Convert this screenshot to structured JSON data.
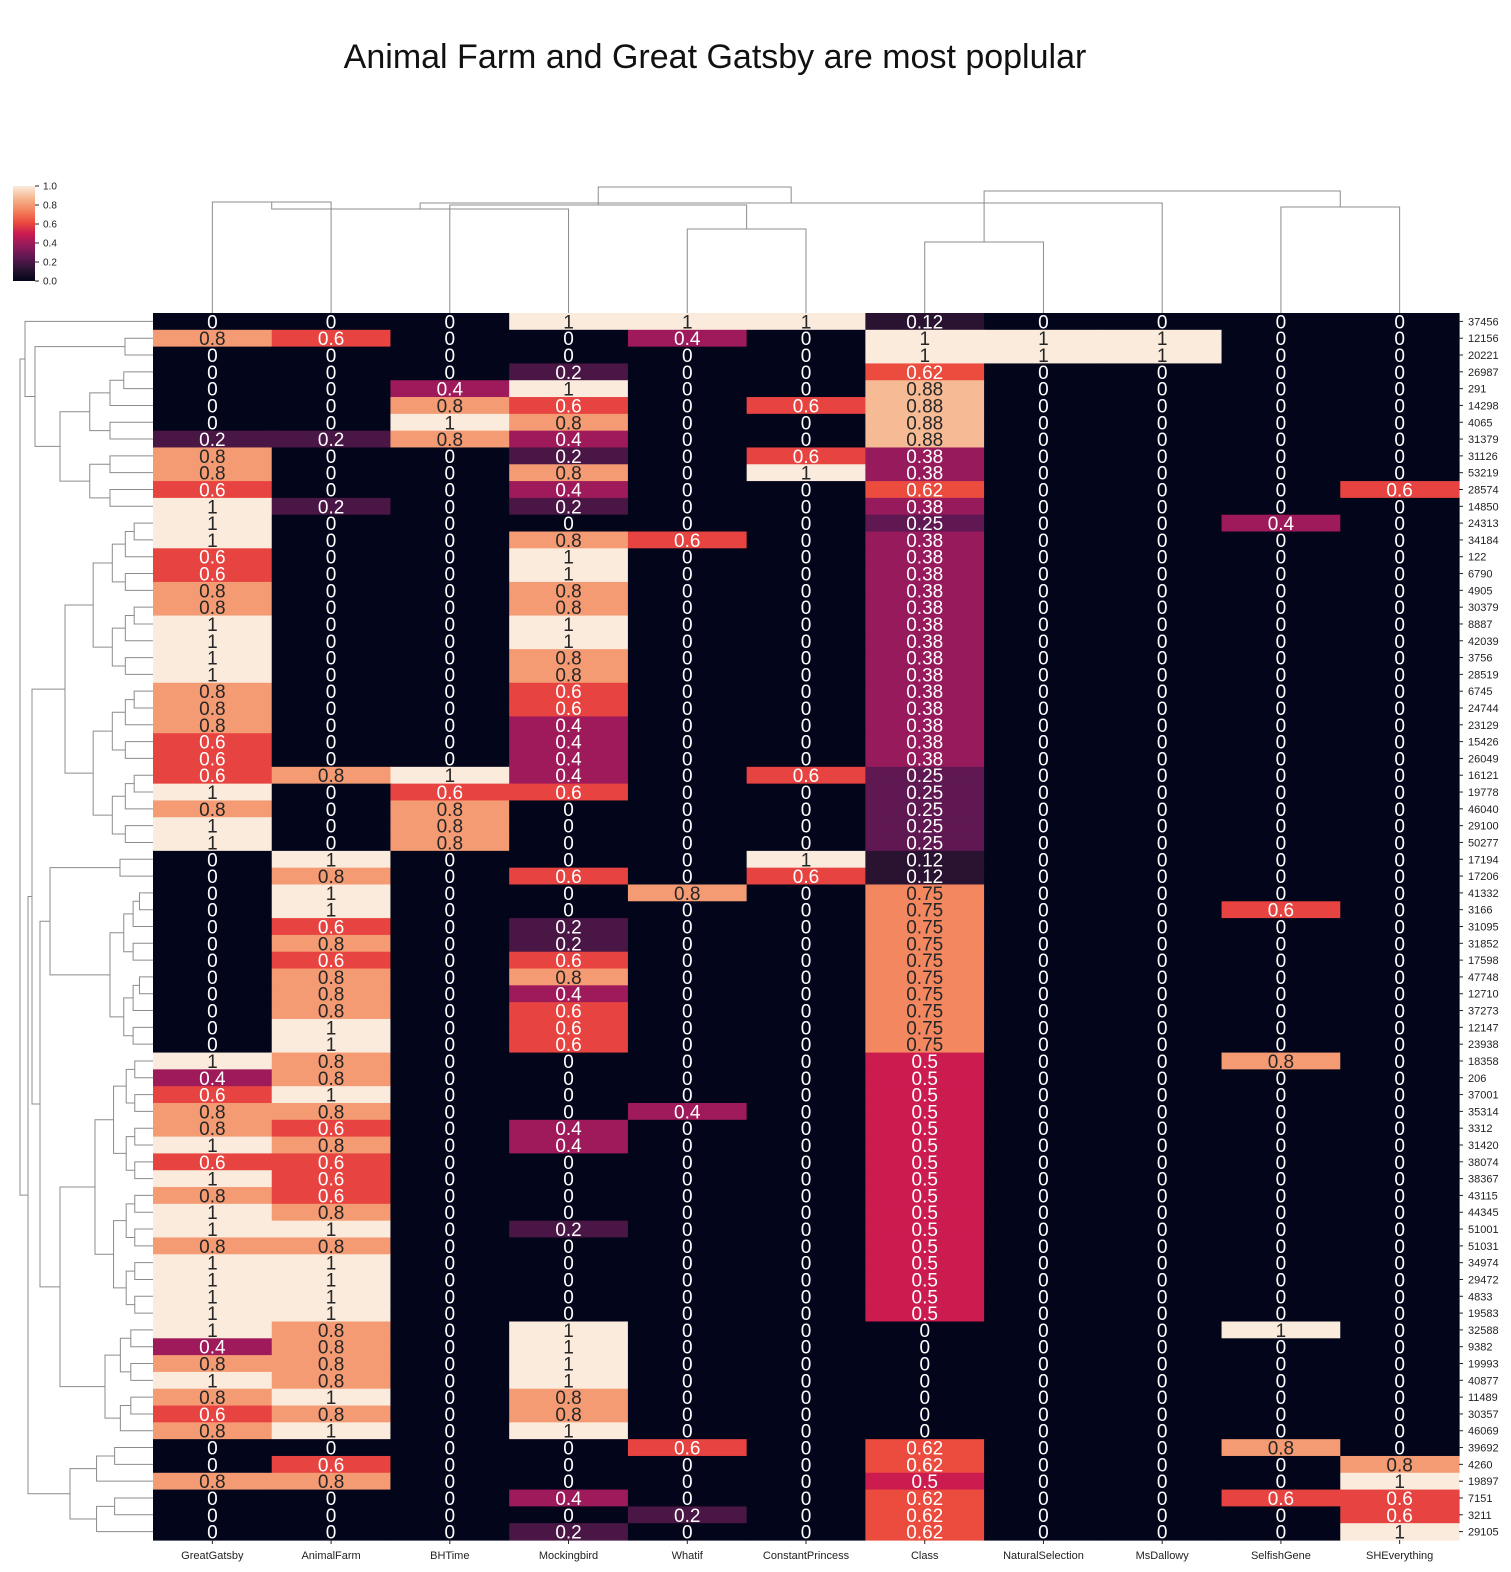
{
  "chart_data": {
    "type": "heatmap",
    "title": "Animal Farm and Great Gatsby are most poplular",
    "columns": [
      "GreatGatsby",
      "AnimalFarm",
      "BHTime",
      "Mockingbird",
      "Whatif",
      "ConstantPrincess",
      "Class",
      "NaturalSelection",
      "MsDallowy",
      "SelfishGene",
      "SHEverything"
    ],
    "rows": [
      {
        "id": "37456",
        "values": [
          0,
          0,
          0,
          1,
          1,
          1,
          0.12,
          0,
          0,
          0,
          0
        ]
      },
      {
        "id": "12156",
        "values": [
          0.8,
          0.6,
          0,
          0,
          0.4,
          0,
          1,
          1,
          1,
          0,
          0
        ]
      },
      {
        "id": "20221",
        "values": [
          0,
          0,
          0,
          0,
          0,
          0,
          1,
          1,
          1,
          0,
          0
        ]
      },
      {
        "id": "26987",
        "values": [
          0,
          0,
          0,
          0.2,
          0,
          0,
          0.62,
          0,
          0,
          0,
          0
        ]
      },
      {
        "id": "291",
        "values": [
          0,
          0,
          0.4,
          1,
          0,
          0,
          0.88,
          0,
          0,
          0,
          0
        ]
      },
      {
        "id": "14298",
        "values": [
          0,
          0,
          0.8,
          0.6,
          0,
          0.6,
          0.88,
          0,
          0,
          0,
          0
        ]
      },
      {
        "id": "4065",
        "values": [
          0,
          0,
          1,
          0.8,
          0,
          0,
          0.88,
          0,
          0,
          0,
          0
        ]
      },
      {
        "id": "31379",
        "values": [
          0.2,
          0.2,
          0.8,
          0.4,
          0,
          0,
          0.88,
          0,
          0,
          0,
          0
        ]
      },
      {
        "id": "31126",
        "values": [
          0.8,
          0,
          0,
          0.2,
          0,
          0.6,
          0.38,
          0,
          0,
          0,
          0
        ]
      },
      {
        "id": "53219",
        "values": [
          0.8,
          0,
          0,
          0.8,
          0,
          1,
          0.38,
          0,
          0,
          0,
          0
        ]
      },
      {
        "id": "28574",
        "values": [
          0.6,
          0,
          0,
          0.4,
          0,
          0,
          0.62,
          0,
          0,
          0,
          0.6
        ]
      },
      {
        "id": "14850",
        "values": [
          1,
          0.2,
          0,
          0.2,
          0,
          0,
          0.38,
          0,
          0,
          0,
          0
        ]
      },
      {
        "id": "24313",
        "values": [
          1,
          0,
          0,
          0,
          0,
          0,
          0.25,
          0,
          0,
          0.4,
          0
        ]
      },
      {
        "id": "34184",
        "values": [
          1,
          0,
          0,
          0.8,
          0.6,
          0,
          0.38,
          0,
          0,
          0,
          0
        ]
      },
      {
        "id": "122",
        "values": [
          0.6,
          0,
          0,
          1,
          0,
          0,
          0.38,
          0,
          0,
          0,
          0
        ]
      },
      {
        "id": "6790",
        "values": [
          0.6,
          0,
          0,
          1,
          0,
          0,
          0.38,
          0,
          0,
          0,
          0
        ]
      },
      {
        "id": "4905",
        "values": [
          0.8,
          0,
          0,
          0.8,
          0,
          0,
          0.38,
          0,
          0,
          0,
          0
        ]
      },
      {
        "id": "30379",
        "values": [
          0.8,
          0,
          0,
          0.8,
          0,
          0,
          0.38,
          0,
          0,
          0,
          0
        ]
      },
      {
        "id": "8887",
        "values": [
          1,
          0,
          0,
          1,
          0,
          0,
          0.38,
          0,
          0,
          0,
          0
        ]
      },
      {
        "id": "42039",
        "values": [
          1,
          0,
          0,
          1,
          0,
          0,
          0.38,
          0,
          0,
          0,
          0
        ]
      },
      {
        "id": "3756",
        "values": [
          1,
          0,
          0,
          0.8,
          0,
          0,
          0.38,
          0,
          0,
          0,
          0
        ]
      },
      {
        "id": "28519",
        "values": [
          1,
          0,
          0,
          0.8,
          0,
          0,
          0.38,
          0,
          0,
          0,
          0
        ]
      },
      {
        "id": "6745",
        "values": [
          0.8,
          0,
          0,
          0.6,
          0,
          0,
          0.38,
          0,
          0,
          0,
          0
        ]
      },
      {
        "id": "24744",
        "values": [
          0.8,
          0,
          0,
          0.6,
          0,
          0,
          0.38,
          0,
          0,
          0,
          0
        ]
      },
      {
        "id": "23129",
        "values": [
          0.8,
          0,
          0,
          0.4,
          0,
          0,
          0.38,
          0,
          0,
          0,
          0
        ]
      },
      {
        "id": "15426",
        "values": [
          0.6,
          0,
          0,
          0.4,
          0,
          0,
          0.38,
          0,
          0,
          0,
          0
        ]
      },
      {
        "id": "26049",
        "values": [
          0.6,
          0,
          0,
          0.4,
          0,
          0,
          0.38,
          0,
          0,
          0,
          0
        ]
      },
      {
        "id": "16121",
        "values": [
          0.6,
          0.8,
          1,
          0.4,
          0,
          0.6,
          0.25,
          0,
          0,
          0,
          0
        ]
      },
      {
        "id": "19778",
        "values": [
          1,
          0,
          0.6,
          0.6,
          0,
          0,
          0.25,
          0,
          0,
          0,
          0
        ]
      },
      {
        "id": "46040",
        "values": [
          0.8,
          0,
          0.8,
          0,
          0,
          0,
          0.25,
          0,
          0,
          0,
          0
        ]
      },
      {
        "id": "29100",
        "values": [
          1,
          0,
          0.8,
          0,
          0,
          0,
          0.25,
          0,
          0,
          0,
          0
        ]
      },
      {
        "id": "50277",
        "values": [
          1,
          0,
          0.8,
          0,
          0,
          0,
          0.25,
          0,
          0,
          0,
          0
        ]
      },
      {
        "id": "17194",
        "values": [
          0,
          1,
          0,
          0,
          0,
          1,
          0.12,
          0,
          0,
          0,
          0
        ]
      },
      {
        "id": "17206",
        "values": [
          0,
          0.8,
          0,
          0.6,
          0,
          0.6,
          0.12,
          0,
          0,
          0,
          0
        ]
      },
      {
        "id": "41332",
        "values": [
          0,
          1,
          0,
          0,
          0.8,
          0,
          0.75,
          0,
          0,
          0,
          0
        ]
      },
      {
        "id": "3166",
        "values": [
          0,
          1,
          0,
          0,
          0,
          0,
          0.75,
          0,
          0,
          0.6,
          0
        ]
      },
      {
        "id": "31095",
        "values": [
          0,
          0.6,
          0,
          0.2,
          0,
          0,
          0.75,
          0,
          0,
          0,
          0
        ]
      },
      {
        "id": "31852",
        "values": [
          0,
          0.8,
          0,
          0.2,
          0,
          0,
          0.75,
          0,
          0,
          0,
          0
        ]
      },
      {
        "id": "17598",
        "values": [
          0,
          0.6,
          0,
          0.6,
          0,
          0,
          0.75,
          0,
          0,
          0,
          0
        ]
      },
      {
        "id": "47748",
        "values": [
          0,
          0.8,
          0,
          0.8,
          0,
          0,
          0.75,
          0,
          0,
          0,
          0
        ]
      },
      {
        "id": "12710",
        "values": [
          0,
          0.8,
          0,
          0.4,
          0,
          0,
          0.75,
          0,
          0,
          0,
          0
        ]
      },
      {
        "id": "37273",
        "values": [
          0,
          0.8,
          0,
          0.6,
          0,
          0,
          0.75,
          0,
          0,
          0,
          0
        ]
      },
      {
        "id": "12147",
        "values": [
          0,
          1,
          0,
          0.6,
          0,
          0,
          0.75,
          0,
          0,
          0,
          0
        ]
      },
      {
        "id": "23938",
        "values": [
          0,
          1,
          0,
          0.6,
          0,
          0,
          0.75,
          0,
          0,
          0,
          0
        ]
      },
      {
        "id": "18358",
        "values": [
          1,
          0.8,
          0,
          0,
          0,
          0,
          0.5,
          0,
          0,
          0.8,
          0
        ]
      },
      {
        "id": "206",
        "values": [
          0.4,
          0.8,
          0,
          0,
          0,
          0,
          0.5,
          0,
          0,
          0,
          0
        ]
      },
      {
        "id": "37001",
        "values": [
          0.6,
          1,
          0,
          0,
          0,
          0,
          0.5,
          0,
          0,
          0,
          0
        ]
      },
      {
        "id": "35314",
        "values": [
          0.8,
          0.8,
          0,
          0,
          0.4,
          0,
          0.5,
          0,
          0,
          0,
          0
        ]
      },
      {
        "id": "3312",
        "values": [
          0.8,
          0.6,
          0,
          0.4,
          0,
          0,
          0.5,
          0,
          0,
          0,
          0
        ]
      },
      {
        "id": "31420",
        "values": [
          1,
          0.8,
          0,
          0.4,
          0,
          0,
          0.5,
          0,
          0,
          0,
          0
        ]
      },
      {
        "id": "38074",
        "values": [
          0.6,
          0.6,
          0,
          0,
          0,
          0,
          0.5,
          0,
          0,
          0,
          0
        ]
      },
      {
        "id": "38367",
        "values": [
          1,
          0.6,
          0,
          0,
          0,
          0,
          0.5,
          0,
          0,
          0,
          0
        ]
      },
      {
        "id": "43115",
        "values": [
          0.8,
          0.6,
          0,
          0,
          0,
          0,
          0.5,
          0,
          0,
          0,
          0
        ]
      },
      {
        "id": "44345",
        "values": [
          1,
          0.8,
          0,
          0,
          0,
          0,
          0.5,
          0,
          0,
          0,
          0
        ]
      },
      {
        "id": "51001",
        "values": [
          1,
          1,
          0,
          0.2,
          0,
          0,
          0.5,
          0,
          0,
          0,
          0
        ]
      },
      {
        "id": "51031",
        "values": [
          0.8,
          0.8,
          0,
          0,
          0,
          0,
          0.5,
          0,
          0,
          0,
          0
        ]
      },
      {
        "id": "34974",
        "values": [
          1,
          1,
          0,
          0,
          0,
          0,
          0.5,
          0,
          0,
          0,
          0
        ]
      },
      {
        "id": "29472",
        "values": [
          1,
          1,
          0,
          0,
          0,
          0,
          0.5,
          0,
          0,
          0,
          0
        ]
      },
      {
        "id": "4833",
        "values": [
          1,
          1,
          0,
          0,
          0,
          0,
          0.5,
          0,
          0,
          0,
          0
        ]
      },
      {
        "id": "19583",
        "values": [
          1,
          1,
          0,
          0,
          0,
          0,
          0.5,
          0,
          0,
          0,
          0
        ]
      },
      {
        "id": "32588",
        "values": [
          1,
          0.8,
          0,
          1,
          0,
          0,
          0,
          0,
          0,
          1,
          0
        ]
      },
      {
        "id": "9382",
        "values": [
          0.4,
          0.8,
          0,
          1,
          0,
          0,
          0,
          0,
          0,
          0,
          0
        ]
      },
      {
        "id": "19993",
        "values": [
          0.8,
          0.8,
          0,
          1,
          0,
          0,
          0,
          0,
          0,
          0,
          0
        ]
      },
      {
        "id": "40877",
        "values": [
          1,
          0.8,
          0,
          1,
          0,
          0,
          0,
          0,
          0,
          0,
          0
        ]
      },
      {
        "id": "11489",
        "values": [
          0.8,
          1,
          0,
          0.8,
          0,
          0,
          0,
          0,
          0,
          0,
          0
        ]
      },
      {
        "id": "30357",
        "values": [
          0.6,
          0.8,
          0,
          0.8,
          0,
          0,
          0,
          0,
          0,
          0,
          0
        ]
      },
      {
        "id": "46069",
        "values": [
          0.8,
          1,
          0,
          1,
          0,
          0,
          0,
          0,
          0,
          0,
          0
        ]
      },
      {
        "id": "39692",
        "values": [
          0,
          0,
          0,
          0,
          0.6,
          0,
          0.62,
          0,
          0,
          0.8,
          0
        ]
      },
      {
        "id": "4260",
        "values": [
          0,
          0.6,
          0,
          0,
          0,
          0,
          0.62,
          0,
          0,
          0,
          0.8
        ]
      },
      {
        "id": "19897",
        "values": [
          0.8,
          0.8,
          0,
          0,
          0,
          0,
          0.5,
          0,
          0,
          0,
          1
        ]
      },
      {
        "id": "7151",
        "values": [
          0,
          0,
          0,
          0.4,
          0,
          0,
          0.62,
          0,
          0,
          0.6,
          0.6
        ]
      },
      {
        "id": "3211",
        "values": [
          0,
          0,
          0,
          0,
          0.2,
          0,
          0.62,
          0,
          0,
          0,
          0.6
        ]
      },
      {
        "id": "29105",
        "values": [
          0,
          0,
          0,
          0.2,
          0,
          0,
          0.62,
          0,
          0,
          0,
          1
        ]
      }
    ],
    "colorbar": {
      "range": [
        0,
        1
      ],
      "ticks": [
        "0.0",
        "0.2",
        "0.4",
        "0.6",
        "0.8",
        "1.0"
      ],
      "colormap": "rocket"
    },
    "dendrogram_color": "#8c8c8c"
  }
}
